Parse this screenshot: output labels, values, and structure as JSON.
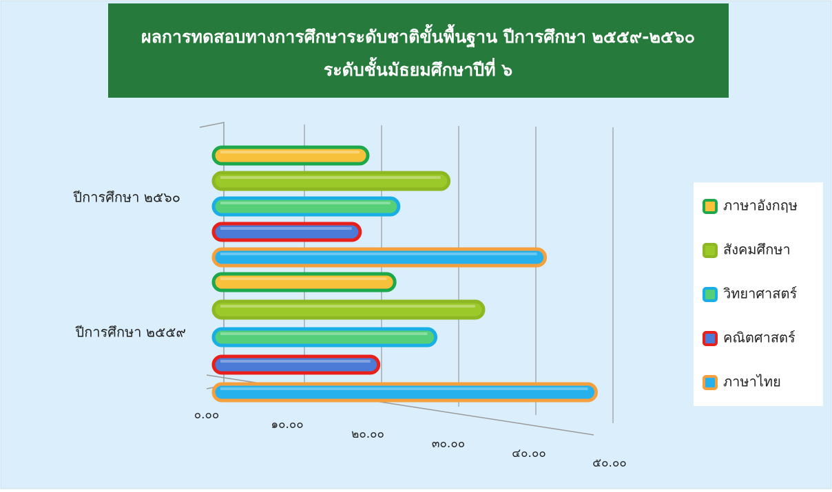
{
  "chart_data": {
    "type": "bar",
    "orientation": "horizontal",
    "title": "ผลการทดสอบทางการศึกษาระดับชาติขั้นพื้นฐาน ปีการศึกษา ๒๕๕๙-๒๕๖๐",
    "subtitle": "ระดับชั้นมัธยมศึกษาปีที่ ๖",
    "categories": [
      "ปีการศึกษา ๒๕๕๙",
      "ปีการศึกษา ๒๕๖๐"
    ],
    "series": [
      {
        "name": "ภาษาอังกฤษ",
        "color": "#f7c13c",
        "edge_color": "#1ea84c",
        "values": [
          23.5,
          20
        ]
      },
      {
        "name": "สังคมศึกษา",
        "color": "#9cc92a",
        "edge_color": "#8db824",
        "values": [
          35,
          30.5
        ]
      },
      {
        "name": "วิทยาศาสตร์",
        "color": "#55cf78",
        "edge_color": "#19aee6",
        "values": [
          28.8,
          24
        ]
      },
      {
        "name": "คณิตศาสตร์",
        "color": "#4b7bd6",
        "edge_color": "#e8201c",
        "values": [
          21.4,
          19
        ]
      },
      {
        "name": "ภาษาไทย",
        "color": "#27b1ec",
        "edge_color": "#f4a03e",
        "values": [
          49.6,
          43
        ]
      }
    ],
    "xlim": [
      0,
      50
    ],
    "xticks": [
      {
        "value": 0,
        "label": "๐.๐๐"
      },
      {
        "value": 10,
        "label": "๑๐.๐๐"
      },
      {
        "value": 20,
        "label": "๒๐.๐๐"
      },
      {
        "value": 30,
        "label": "๓๐.๐๐"
      },
      {
        "value": 40,
        "label": "๔๐.๐๐"
      },
      {
        "value": 50,
        "label": "๕๐.๐๐"
      }
    ],
    "grid": true,
    "legend": "right"
  }
}
